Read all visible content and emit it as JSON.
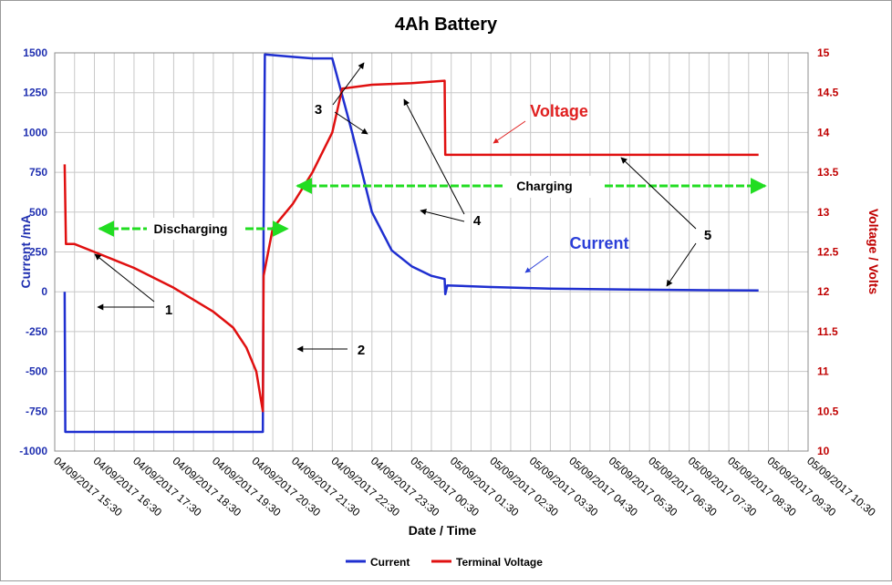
{
  "chart_data": {
    "type": "line",
    "title": "4Ah Battery",
    "xlabel": "Date / Time",
    "ylabel_left": "Current /mA",
    "ylabel_right": "Voltage / Volts",
    "ylim_left": [
      -1000,
      1500
    ],
    "ylim_right": [
      10,
      15
    ],
    "yticks_left": [
      "1500",
      "1250",
      "1000",
      "750",
      "500",
      "250",
      "0",
      "-250",
      "-500",
      "-750",
      "-1000"
    ],
    "yticks_right": [
      "15",
      "14.5",
      "14",
      "13.5",
      "13",
      "12.5",
      "12",
      "11.5",
      "11",
      "10.5",
      "10"
    ],
    "xticks": [
      "04/09/2017 15:30",
      "04/09/2017 16:30",
      "04/09/2017 17:30",
      "04/09/2017 18:30",
      "04/09/2017 19:30",
      "04/09/2017 20:30",
      "04/09/2017 21:30",
      "04/09/2017 22:30",
      "04/09/2017 23:30",
      "05/09/2017 00:30",
      "05/09/2017 01:30",
      "05/09/2017 02:30",
      "05/09/2017 03:30",
      "05/09/2017 04:30",
      "05/09/2017 05:30",
      "05/09/2017 06:30",
      "05/09/2017 07:30",
      "05/09/2017 08:30",
      "05/09/2017 09:30",
      "05/09/2017 10:30"
    ],
    "grid": true,
    "legend_position": "bottom",
    "series": [
      {
        "name": "Current",
        "axis": "left",
        "color": "#1f2fd0",
        "x": [
          "04/09/2017 15:45",
          "04/09/2017 15:46",
          "04/09/2017 15:48",
          "04/09/2017 20:45",
          "04/09/2017 20:46",
          "04/09/2017 20:48",
          "04/09/2017 21:30",
          "04/09/2017 22:00",
          "04/09/2017 22:30",
          "04/09/2017 23:00",
          "04/09/2017 23:30",
          "05/09/2017 00:00",
          "05/09/2017 00:30",
          "05/09/2017 01:00",
          "05/09/2017 01:20",
          "05/09/2017 01:21",
          "05/09/2017 01:24",
          "05/09/2017 02:30",
          "05/09/2017 04:00",
          "05/09/2017 06:00",
          "05/09/2017 08:00",
          "05/09/2017 09:15"
        ],
        "y": [
          0,
          -880,
          -880,
          -880,
          400,
          1490,
          1475,
          1465,
          1465,
          1000,
          500,
          260,
          160,
          100,
          80,
          -15,
          40,
          30,
          20,
          14,
          10,
          8
        ]
      },
      {
        "name": "Terminal Voltage",
        "axis": "right",
        "color": "#e01010",
        "x": [
          "04/09/2017 15:45",
          "04/09/2017 15:47",
          "04/09/2017 16:00",
          "04/09/2017 16:30",
          "04/09/2017 17:30",
          "04/09/2017 18:30",
          "04/09/2017 19:30",
          "04/09/2017 20:00",
          "04/09/2017 20:20",
          "04/09/2017 20:35",
          "04/09/2017 20:45",
          "04/09/2017 20:46",
          "04/09/2017 21:00",
          "04/09/2017 21:30",
          "04/09/2017 22:00",
          "04/09/2017 22:30",
          "04/09/2017 22:45",
          "04/09/2017 23:30",
          "05/09/2017 00:30",
          "05/09/2017 01:20",
          "05/09/2017 01:21",
          "05/09/2017 05:30",
          "05/09/2017 09:15"
        ],
        "y": [
          13.6,
          12.6,
          12.6,
          12.5,
          12.3,
          12.05,
          11.75,
          11.55,
          11.3,
          11.0,
          10.5,
          12.2,
          12.8,
          13.1,
          13.5,
          14.0,
          14.55,
          14.6,
          14.62,
          14.65,
          13.72,
          13.72,
          13.72
        ]
      }
    ],
    "annotations": {
      "discharging": "Discharging",
      "charging": "Charging",
      "voltage": "Voltage",
      "current": "Current",
      "n1": "1",
      "n2": "2",
      "n3": "3",
      "n4": "4",
      "n5": "5"
    }
  }
}
